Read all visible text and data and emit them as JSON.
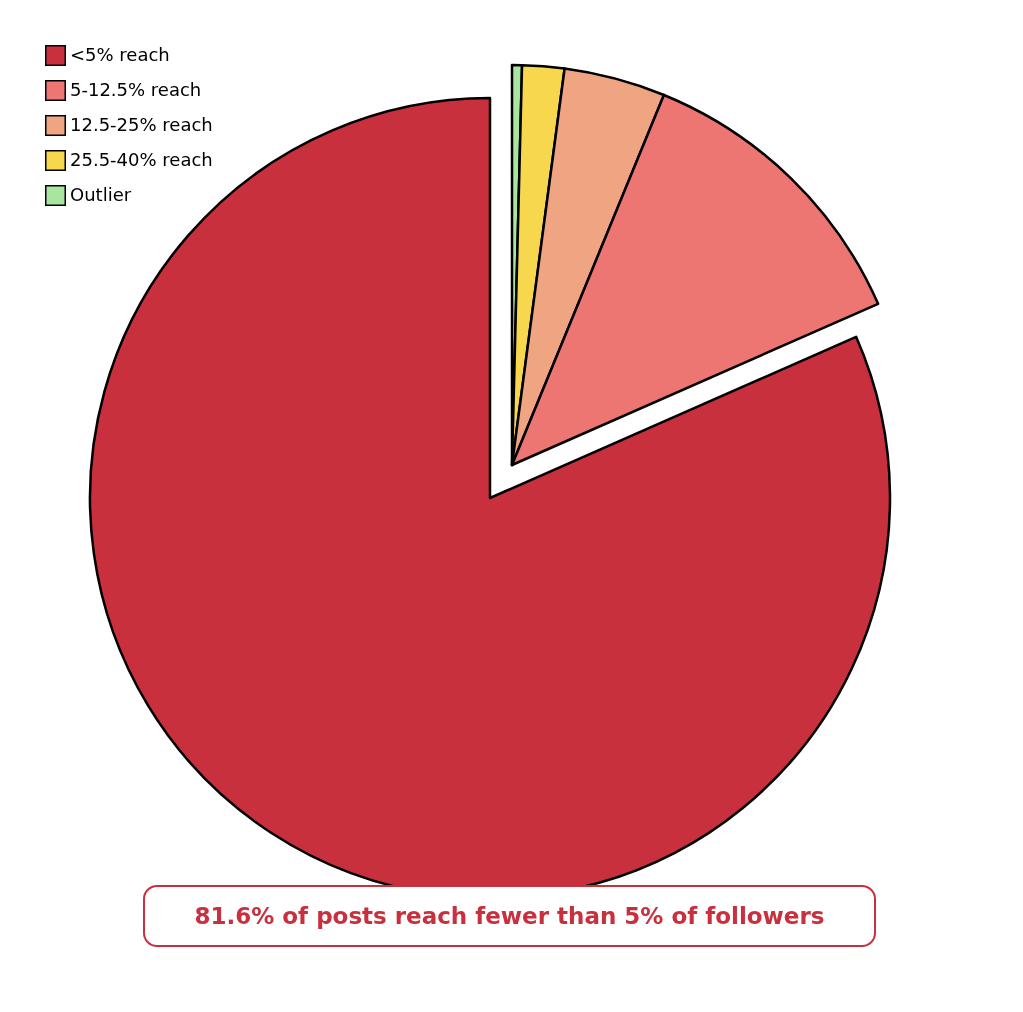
{
  "chart_data": {
    "type": "pie",
    "categories": [
      "<5% reach",
      "5-12.5% reach",
      "12.5-25% reach",
      "25.5-40% reach",
      "Outlier"
    ],
    "values": [
      81.6,
      12.2,
      4.1,
      1.7,
      0.4
    ],
    "colors": [
      "#c9303e",
      "#ed7672",
      "#f0a582",
      "#f7d74e",
      "#a8e6a0"
    ],
    "legend": "top left",
    "annotations": [
      "81.6% of posts reach fewer than 5% of followers"
    ]
  }
}
